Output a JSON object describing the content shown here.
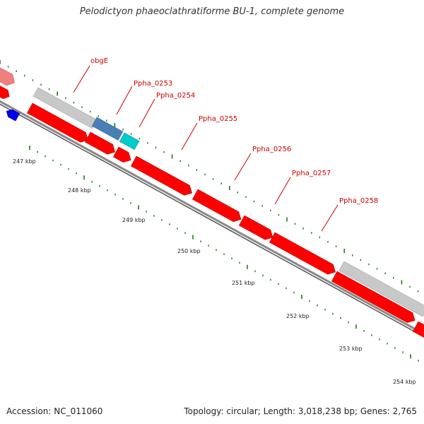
{
  "title": "Pelodictyon phaeoclathratiforme BU-1, complete genome",
  "footer": {
    "accession": "Accession: NC_011060",
    "summary": "Topology: circular; Length: 3,018,238 bp; Genes: 2,765"
  },
  "colors": {
    "forward_gene": "#ff0000",
    "forward_gene_faded": "#f08080",
    "grey_gene": "#c8c8c8",
    "steelblue_gene": "#4a7fb5",
    "cyan_gene": "#00cccc",
    "blue_gene": "#0000ee",
    "backbone": "#777777",
    "tick": "#1a7a1a",
    "label": "#cc0000"
  },
  "gene_labels": [
    "obgE",
    "Ppha_0253",
    "Ppha_0254",
    "Ppha_0255",
    "Ppha_0256",
    "Ppha_0257",
    "Ppha_0258"
  ],
  "kbp_labels": [
    "247 kbp",
    "248 kbp",
    "249 kbp",
    "250 kbp",
    "251 kbp",
    "252 kbp",
    "253 kbp",
    "254 kbp"
  ]
}
